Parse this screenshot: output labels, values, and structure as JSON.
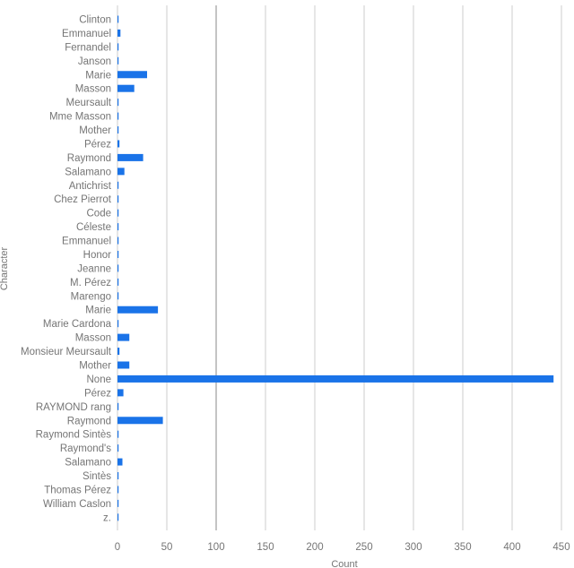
{
  "chart_data": {
    "type": "bar",
    "orientation": "horizontal",
    "xlabel": "Count",
    "ylabel": "Character",
    "xlim": [
      0,
      450
    ],
    "xticks": [
      0,
      50,
      100,
      150,
      200,
      250,
      300,
      350,
      400,
      450
    ],
    "grid": true,
    "bar_color": "#1a73e8",
    "categories": [
      "Clinton",
      "Emmanuel",
      "Fernandel",
      "Janson",
      "Marie",
      "Masson",
      "Meursault",
      "Mme Masson",
      "Mother",
      "Pérez",
      "Raymond",
      "Salamano",
      "Antichrist",
      "Chez Pierrot",
      "Code",
      "Céleste",
      "Emmanuel",
      "Honor",
      "Jeanne",
      "M. Pérez",
      "Marengo",
      "Marie",
      "Marie Cardona",
      "Masson",
      "Monsieur Meursault",
      "Mother",
      "None",
      "Pérez",
      "RAYMOND rang",
      "Raymond",
      "Raymond Sintès",
      "Raymond's",
      "Salamano",
      "Sintès",
      "Thomas Pérez",
      "William Caslon",
      "z."
    ],
    "values": [
      1,
      3,
      1,
      1,
      30,
      17,
      1,
      1,
      1,
      2,
      26,
      7,
      1,
      1,
      1,
      1,
      1,
      1,
      1,
      1,
      1,
      41,
      1,
      12,
      2,
      12,
      442,
      6,
      1,
      46,
      1,
      1,
      5,
      1,
      1,
      1,
      1
    ]
  }
}
